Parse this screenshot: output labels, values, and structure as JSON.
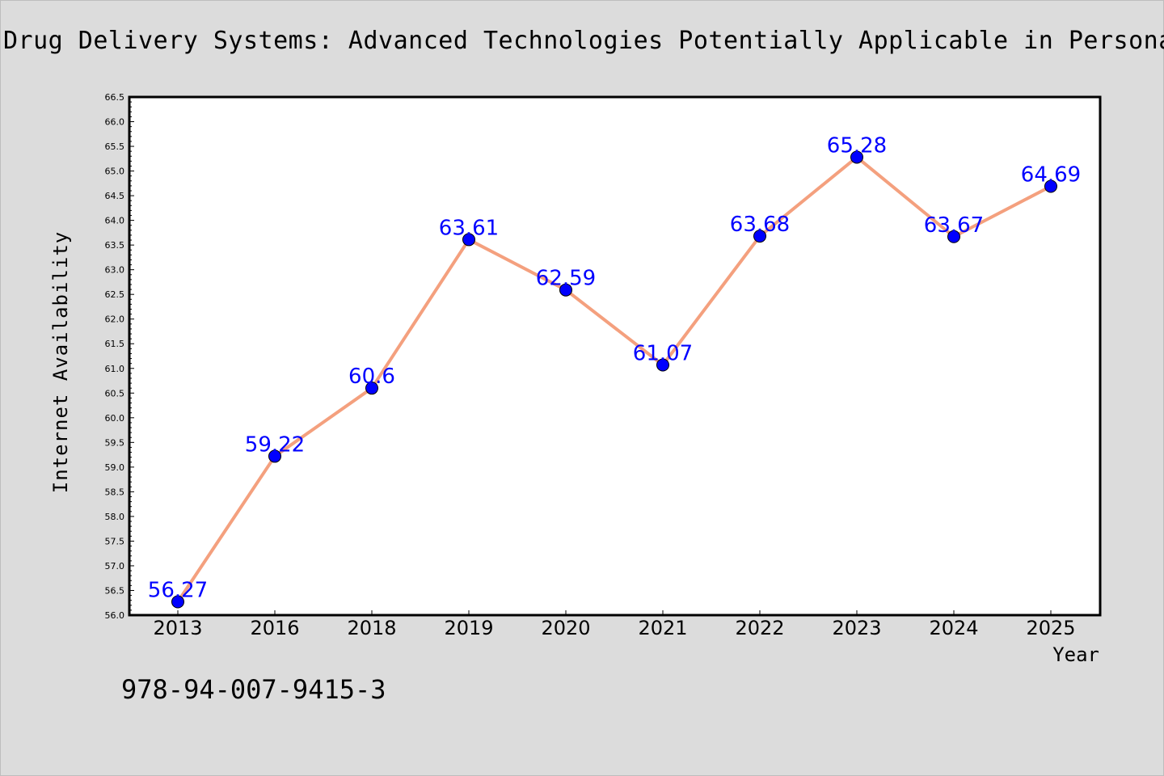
{
  "chart_data": {
    "type": "line",
    "title": "Drug Delivery Systems: Advanced Technologies Potentially Applicable in Personalized Treatments",
    "xlabel": "Year",
    "ylabel": "Internet Availability",
    "categories": [
      "2013",
      "2016",
      "2018",
      "2019",
      "2020",
      "2021",
      "2022",
      "2023",
      "2024",
      "2025"
    ],
    "series": [
      {
        "values": [
          56.27,
          59.22,
          60.6,
          63.61,
          62.59,
          61.07,
          63.68,
          65.28,
          63.67,
          64.69
        ],
        "labels": [
          "56.27",
          "59.22",
          "60.6",
          "63.61",
          "62.59",
          "61.07",
          "63.68",
          "65.28",
          "63.67",
          "64.69"
        ]
      }
    ],
    "ylim": [
      56.0,
      66.5
    ],
    "yticks": [
      "56.0",
      "56.5",
      "57.0",
      "57.5",
      "58.0",
      "58.5",
      "59.0",
      "59.5",
      "60.0",
      "60.5",
      "61.0",
      "61.5",
      "62.0",
      "62.5",
      "63.0",
      "63.5",
      "64.0",
      "64.5",
      "65.0",
      "65.5",
      "66.0",
      "66.5"
    ],
    "grid": false,
    "legend": "none",
    "line_color": "#f4a07e",
    "marker_color": "#0000ff",
    "label_color": "#0000ff",
    "background": "#dcdcdc",
    "plot_background": "#ffffff"
  },
  "footer": {
    "isbn": "978-94-007-9415-3"
  }
}
